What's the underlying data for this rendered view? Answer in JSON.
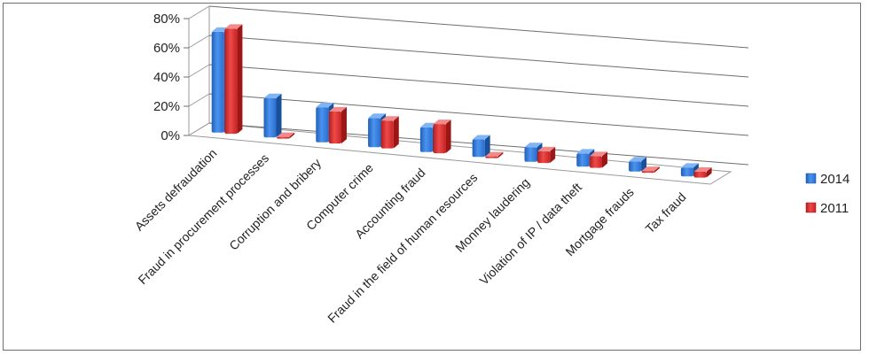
{
  "chart_data": {
    "type": "bar",
    "title": "",
    "xlabel": "",
    "ylabel": "",
    "ylim": [
      0,
      80
    ],
    "y_ticks": [
      "0%",
      "20%",
      "40%",
      "60%",
      "80%"
    ],
    "grid": true,
    "legend_position": "right",
    "categories": [
      "Assets defraudation",
      "Fraud in procurement processes",
      "Corruption and bribery",
      "Computer crime",
      "Accounting fraud",
      "Fraud in the field of human resources",
      "Monney laudering",
      "Violation of IP / data theft",
      "Mortgage frauds",
      "Tax fraud"
    ],
    "series": [
      {
        "name": "2014",
        "values": [
          69,
          27,
          24,
          20,
          17,
          12,
          10,
          9,
          7,
          6
        ]
      },
      {
        "name": "2011",
        "values": [
          72,
          0,
          22,
          19,
          20,
          0,
          8,
          8,
          0,
          4
        ]
      }
    ],
    "colors": {
      "2014": "#2e75d6",
      "2011": "#d62828"
    }
  }
}
